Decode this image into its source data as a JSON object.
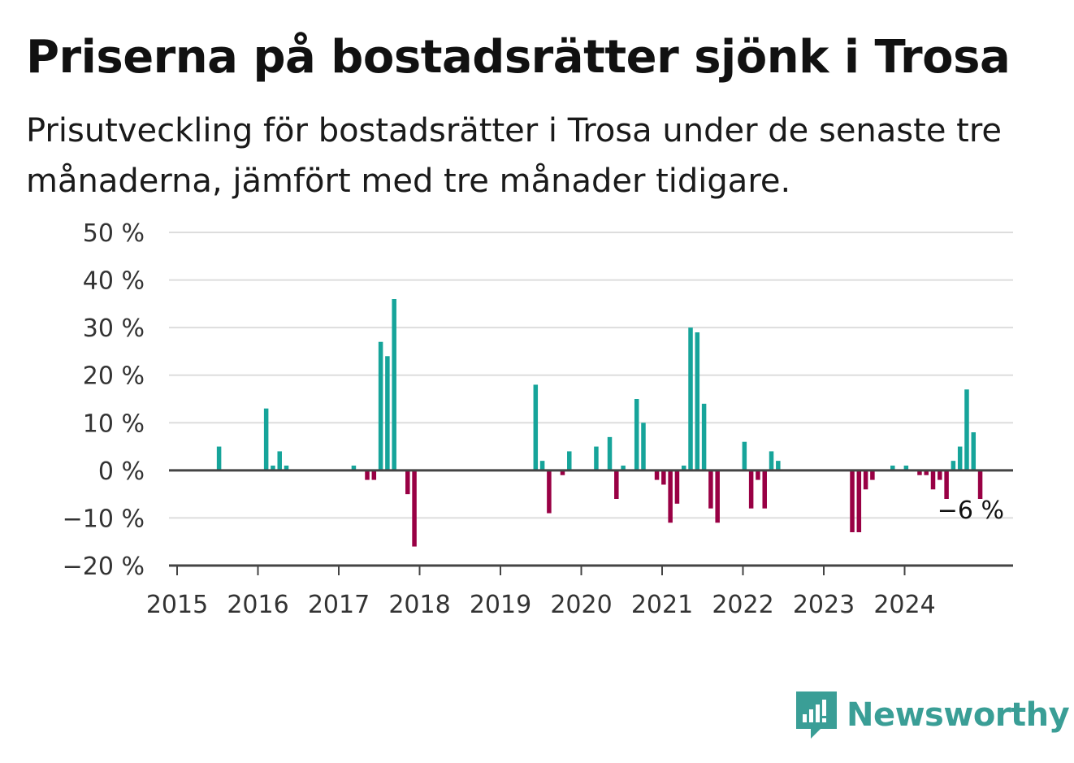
{
  "title": "Priserna på bostadsrätter sjönk i Trosa",
  "subtitle": "Prisutveckling för bostadsrätter i Trosa under de senaste tre månaderna, jämfört med tre månader tidigare.",
  "brand": "Newsworthy",
  "colors": {
    "positive": "#16a49a",
    "negative": "#990044",
    "grid": "#dddddd",
    "axis": "#444444",
    "brand": "#3a9e96"
  },
  "chart_data": {
    "type": "bar",
    "title": "Priserna på bostadsrätter sjönk i Trosa",
    "xlabel": "",
    "ylabel": "",
    "ylim": [
      -20,
      50
    ],
    "y_ticks": [
      -20,
      -10,
      0,
      10,
      20,
      30,
      40,
      50
    ],
    "y_tick_labels": [
      "−20 %",
      "−10 %",
      "0 %",
      "10 %",
      "20 %",
      "30 %",
      "40 %",
      "50 %"
    ],
    "x_ticks": [
      "2015",
      "2016",
      "2017",
      "2018",
      "2019",
      "2020",
      "2021",
      "2022",
      "2023",
      "2024"
    ],
    "grid": true,
    "end_label": "−6 %",
    "x_start": "2015-01",
    "series": [
      {
        "values": [
          0,
          0,
          0,
          0,
          0,
          5,
          0,
          0,
          0,
          0,
          0,
          0,
          13,
          1,
          4,
          1,
          0,
          0,
          0,
          0,
          0,
          0,
          0,
          0,
          0,
          1,
          0,
          -2,
          -2,
          27,
          24,
          36,
          0,
          -5,
          -16,
          0,
          0,
          0,
          0,
          0,
          0,
          0,
          0,
          0,
          0,
          0,
          0,
          0,
          0,
          0,
          0,
          0,
          18,
          2,
          -9,
          0,
          -1,
          4,
          0,
          0,
          0,
          5,
          0,
          7,
          -6,
          1,
          0,
          15,
          10,
          0,
          -2,
          -3,
          -11,
          -7,
          1,
          30,
          29,
          14,
          -8,
          -11,
          0,
          0,
          0,
          6,
          -8,
          -2,
          -8,
          4,
          2,
          0,
          0,
          0,
          0,
          0,
          0,
          0,
          0,
          0,
          0,
          -13,
          -13,
          -4,
          -2,
          0,
          0,
          1,
          0,
          1,
          0,
          -1,
          -1,
          -4,
          -2,
          -6,
          2,
          5,
          17,
          8,
          -6
        ]
      }
    ]
  }
}
